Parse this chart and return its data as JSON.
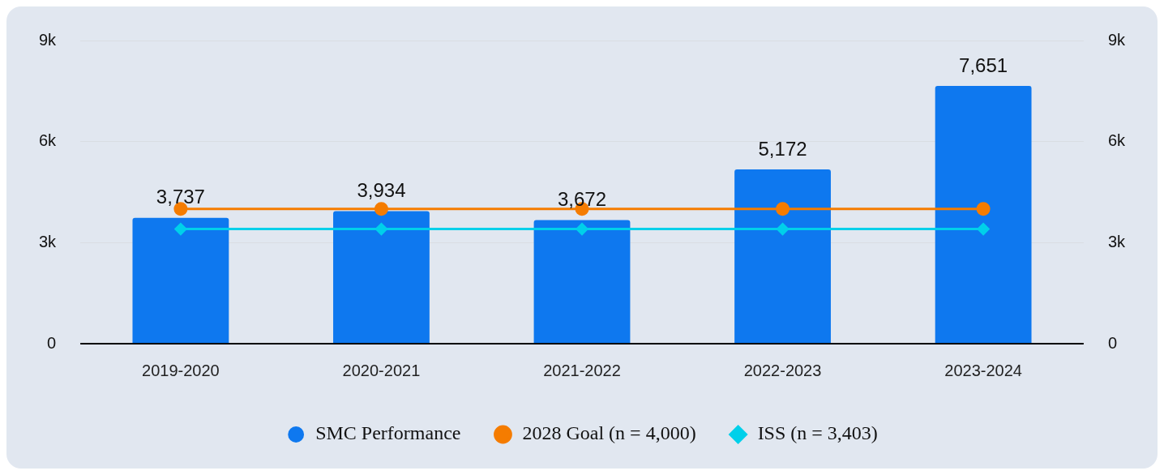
{
  "chart_data": {
    "type": "bar",
    "categories": [
      "2019-2020",
      "2020-2021",
      "2021-2022",
      "2022-2023",
      "2023-2024"
    ],
    "series": [
      {
        "name": "SMC Performance",
        "color": "#0e78ef",
        "values": [
          3737,
          3934,
          3672,
          5172,
          7651
        ],
        "value_labels": [
          "3,737",
          "3,934",
          "3,672",
          "5,172",
          "7,651"
        ]
      },
      {
        "name": "2028 Goal (n = 4,000)",
        "type": "line",
        "color": "#f57c00",
        "marker": "circle",
        "values": [
          4000,
          4000,
          4000,
          4000,
          4000
        ]
      },
      {
        "name": "ISS (n = 3,403)",
        "type": "line",
        "color": "#00d0ea",
        "marker": "diamond",
        "values": [
          3403,
          3403,
          3403,
          3403,
          3403
        ]
      }
    ],
    "ylim": [
      0,
      9000
    ],
    "yticks": [
      {
        "value": 0,
        "label": "0"
      },
      {
        "value": 3000,
        "label": "3k"
      },
      {
        "value": 6000,
        "label": "6k"
      },
      {
        "value": 9000,
        "label": "9k"
      }
    ],
    "y2lim": [
      0,
      9000
    ],
    "y2ticks": [
      {
        "value": 0,
        "label": "0"
      },
      {
        "value": 3000,
        "label": "3k"
      },
      {
        "value": 6000,
        "label": "6k"
      },
      {
        "value": 9000,
        "label": "9k"
      }
    ],
    "grid": "y",
    "legend": "bottom"
  }
}
